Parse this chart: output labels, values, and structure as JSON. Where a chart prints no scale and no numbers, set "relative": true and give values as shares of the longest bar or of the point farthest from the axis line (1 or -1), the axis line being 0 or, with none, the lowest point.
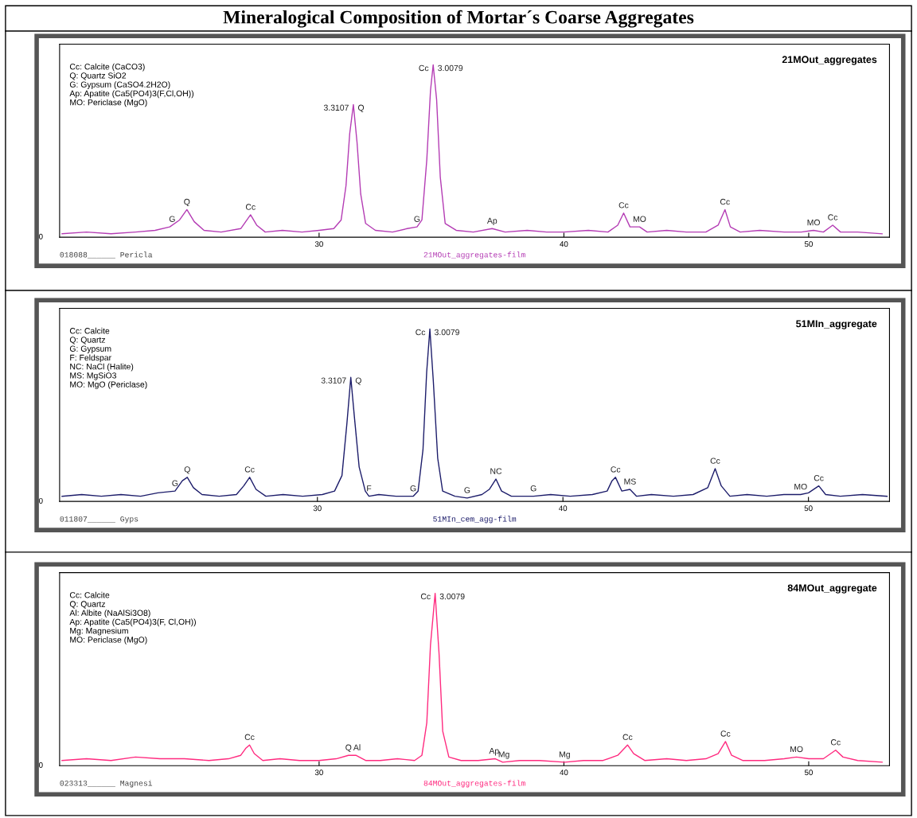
{
  "chart_data": [
    {
      "type": "line",
      "relative": true,
      "title": "Mineralogical Composition of Mortar´s Coarse Aggregates",
      "subtitle": "21MOut_aggregates",
      "xlim": [
        19.4,
        53.3
      ],
      "xticks": [
        30,
        40,
        50
      ],
      "grid": false,
      "legend": false,
      "series": [
        {
          "color": "#b43cb4",
          "x": [
            19.5,
            20.5,
            21.5,
            22.5,
            23.3,
            23.9,
            24.3,
            24.6,
            24.9,
            25.3,
            26.0,
            26.8,
            27.0,
            27.2,
            27.45,
            27.8,
            28.5,
            29.3,
            30.0,
            30.6,
            30.9,
            31.1,
            31.25,
            31.4,
            31.55,
            31.7,
            31.9,
            32.3,
            33.0,
            33.6,
            34.0,
            34.2,
            34.4,
            34.55,
            34.66,
            34.8,
            34.95,
            35.15,
            35.6,
            36.3,
            37.07,
            37.6,
            38.5,
            39.3,
            40.0,
            41.0,
            41.8,
            42.2,
            42.44,
            42.7,
            43.09,
            43.4,
            44.2,
            45.0,
            45.8,
            46.3,
            46.58,
            46.8,
            47.2,
            48.0,
            49.0,
            49.7,
            50.2,
            50.6,
            50.98,
            51.3,
            52.0,
            53.0
          ],
          "values": [
            0.02,
            0.03,
            0.02,
            0.03,
            0.04,
            0.06,
            0.1,
            0.16,
            0.09,
            0.04,
            0.03,
            0.05,
            0.09,
            0.13,
            0.07,
            0.03,
            0.04,
            0.03,
            0.04,
            0.05,
            0.1,
            0.3,
            0.6,
            0.77,
            0.55,
            0.25,
            0.08,
            0.04,
            0.03,
            0.05,
            0.06,
            0.1,
            0.45,
            0.85,
            1.0,
            0.8,
            0.35,
            0.08,
            0.04,
            0.03,
            0.05,
            0.03,
            0.04,
            0.03,
            0.03,
            0.04,
            0.03,
            0.07,
            0.14,
            0.06,
            0.06,
            0.03,
            0.04,
            0.03,
            0.03,
            0.07,
            0.16,
            0.06,
            0.03,
            0.04,
            0.03,
            0.03,
            0.04,
            0.03,
            0.07,
            0.03,
            0.03,
            0.02
          ]
        }
      ],
      "annotations": [
        "Cc: Calcite (CaCO3)\nQ: Quartz SiO2\nG: Gypsum (CaSO4.2H2O)\nAp: Apatite (Ca5(PO4)3(F,Cl,OH))\nMO: Periclase (MgO)",
        "018088______ Pericla",
        "21MOut_aggregates-film",
        "0",
        {
          "text": "G",
          "x": 24.0,
          "y": 0.06
        },
        {
          "text": "Q",
          "x": 24.6,
          "y": 0.16
        },
        {
          "text": "Cc",
          "x": 27.2,
          "y": 0.13
        },
        {
          "text": "3.3107",
          "x": 31.4,
          "y": 0.77
        },
        {
          "text": "Q",
          "x": 31.4,
          "y": 0.77
        },
        {
          "text": "G",
          "x": 34.0,
          "y": 0.06
        },
        {
          "text": "Cc",
          "x": 34.66,
          "y": 1.0
        },
        {
          "text": "3.0079",
          "x": 34.66,
          "y": 1.0
        },
        {
          "text": "Ap",
          "x": 37.07,
          "y": 0.05
        },
        {
          "text": "Cc",
          "x": 42.44,
          "y": 0.14
        },
        {
          "text": "MO",
          "x": 43.09,
          "y": 0.06
        },
        {
          "text": "Cc",
          "x": 46.58,
          "y": 0.16
        },
        {
          "text": "MO",
          "x": 50.2,
          "y": 0.04
        },
        {
          "text": "Cc",
          "x": 50.98,
          "y": 0.07
        }
      ]
    },
    {
      "type": "line",
      "relative": true,
      "subtitle": "51MIn_aggregate",
      "xlim": [
        19.5,
        53.3
      ],
      "xticks": [
        30,
        40,
        50
      ],
      "grid": false,
      "legend": false,
      "series": [
        {
          "color": "#1c1c6a",
          "x": [
            19.6,
            20.4,
            21.2,
            22.0,
            22.8,
            23.5,
            24.2,
            24.5,
            24.7,
            24.95,
            25.3,
            26.0,
            26.7,
            27.0,
            27.24,
            27.5,
            27.9,
            28.6,
            29.4,
            30.2,
            30.7,
            31.0,
            31.2,
            31.36,
            31.5,
            31.7,
            31.95,
            32.1,
            32.5,
            33.2,
            33.9,
            34.1,
            34.3,
            34.45,
            34.58,
            34.72,
            34.9,
            35.1,
            35.6,
            36.1,
            36.7,
            37.0,
            37.27,
            37.5,
            37.9,
            38.8,
            39.5,
            40.3,
            41.2,
            41.8,
            42.0,
            42.14,
            42.4,
            42.73,
            43.0,
            43.6,
            44.5,
            45.3,
            45.9,
            46.2,
            46.45,
            46.8,
            47.5,
            48.3,
            49.0,
            49.68,
            50.0,
            50.42,
            50.7,
            51.3,
            52.2,
            53.2
          ],
          "values": [
            0.03,
            0.04,
            0.03,
            0.04,
            0.03,
            0.05,
            0.06,
            0.12,
            0.14,
            0.08,
            0.04,
            0.03,
            0.04,
            0.09,
            0.14,
            0.07,
            0.03,
            0.04,
            0.03,
            0.04,
            0.06,
            0.15,
            0.45,
            0.72,
            0.5,
            0.2,
            0.06,
            0.03,
            0.04,
            0.03,
            0.03,
            0.06,
            0.3,
            0.75,
            1.0,
            0.7,
            0.25,
            0.06,
            0.03,
            0.02,
            0.04,
            0.07,
            0.13,
            0.06,
            0.03,
            0.03,
            0.04,
            0.03,
            0.04,
            0.06,
            0.12,
            0.14,
            0.06,
            0.07,
            0.03,
            0.04,
            0.03,
            0.04,
            0.08,
            0.19,
            0.09,
            0.03,
            0.04,
            0.03,
            0.04,
            0.04,
            0.05,
            0.09,
            0.04,
            0.03,
            0.04,
            0.03
          ]
        }
      ],
      "annotations": [
        "Cc: Calcite\nQ: Quartz\nG: Gypsum\nF: Feldspar\nNC: NaCl (Halite)\nMS: MgSiO3\nMO: MgO (Periclase)",
        "011807______ Gyps",
        "51MIn_cem_agg-film",
        "0",
        {
          "text": "G",
          "x": 24.2,
          "y": 0.06
        },
        {
          "text": "Q",
          "x": 24.7,
          "y": 0.14
        },
        {
          "text": "Cc",
          "x": 27.24,
          "y": 0.14
        },
        {
          "text": "3.3107",
          "x": 31.36,
          "y": 0.72
        },
        {
          "text": "Q",
          "x": 31.36,
          "y": 0.72
        },
        {
          "text": "F",
          "x": 32.1,
          "y": 0.03
        },
        {
          "text": "G",
          "x": 33.9,
          "y": 0.03
        },
        {
          "text": "Cc",
          "x": 34.58,
          "y": 1.0
        },
        {
          "text": "3.0079",
          "x": 34.58,
          "y": 1.0
        },
        {
          "text": "G",
          "x": 36.1,
          "y": 0.02
        },
        {
          "text": "NC",
          "x": 37.27,
          "y": 0.13
        },
        {
          "text": "G",
          "x": 38.8,
          "y": 0.03
        },
        {
          "text": "Cc",
          "x": 42.14,
          "y": 0.14
        },
        {
          "text": "MS",
          "x": 42.73,
          "y": 0.07
        },
        {
          "text": "Cc",
          "x": 46.2,
          "y": 0.19
        },
        {
          "text": "MO",
          "x": 49.68,
          "y": 0.04
        },
        {
          "text": "Cc",
          "x": 50.42,
          "y": 0.09
        }
      ]
    },
    {
      "type": "line",
      "relative": true,
      "subtitle": "84MOut_aggregate",
      "xlim": [
        19.4,
        53.3
      ],
      "xticks": [
        30,
        40,
        50
      ],
      "grid": false,
      "legend": false,
      "series": [
        {
          "color": "#ff2a7f",
          "x": [
            19.5,
            20.5,
            21.5,
            22.5,
            23.5,
            24.5,
            25.5,
            26.3,
            26.8,
            27.0,
            27.16,
            27.35,
            27.7,
            28.4,
            29.2,
            30.0,
            30.7,
            31.2,
            31.5,
            31.9,
            32.5,
            33.2,
            33.9,
            34.2,
            34.4,
            34.55,
            34.74,
            34.9,
            35.05,
            35.3,
            35.8,
            36.5,
            37.2,
            37.5,
            38.2,
            39.0,
            40.03,
            40.8,
            41.6,
            42.2,
            42.6,
            42.85,
            43.3,
            44.2,
            45.0,
            45.8,
            46.3,
            46.6,
            46.85,
            47.3,
            48.2,
            49.0,
            49.5,
            50.0,
            50.6,
            51.1,
            51.4,
            52.0,
            53.0
          ],
          "values": [
            0.03,
            0.04,
            0.03,
            0.05,
            0.04,
            0.04,
            0.03,
            0.04,
            0.06,
            0.1,
            0.12,
            0.07,
            0.03,
            0.04,
            0.03,
            0.03,
            0.04,
            0.06,
            0.06,
            0.03,
            0.03,
            0.04,
            0.03,
            0.06,
            0.25,
            0.7,
            1.0,
            0.65,
            0.2,
            0.05,
            0.03,
            0.03,
            0.04,
            0.02,
            0.03,
            0.03,
            0.02,
            0.03,
            0.03,
            0.06,
            0.12,
            0.07,
            0.03,
            0.04,
            0.03,
            0.04,
            0.07,
            0.14,
            0.06,
            0.03,
            0.03,
            0.04,
            0.05,
            0.04,
            0.04,
            0.09,
            0.05,
            0.03,
            0.02
          ]
        }
      ],
      "annotations": [
        "Cc: Calcite\nQ: Quartz\nAl: Albite (NaAlSi3O8)\nAp: Apatite (Ca5(PO4)3(F, Cl,OH))\nMg: Magnesium\nMO: Periclase (MgO)",
        "023313______ Magnesi",
        "84MOut_aggregates-film",
        "0",
        {
          "text": "Cc",
          "x": 27.16,
          "y": 0.12
        },
        {
          "text": "Q",
          "x": 31.2,
          "y": 0.06
        },
        {
          "text": "Al",
          "x": 31.55,
          "y": 0.06
        },
        {
          "text": "Cc",
          "x": 34.74,
          "y": 1.0
        },
        {
          "text": "3.0079",
          "x": 34.74,
          "y": 1.0
        },
        {
          "text": "Ap",
          "x": 37.15,
          "y": 0.04
        },
        {
          "text": "Mg",
          "x": 37.55,
          "y": 0.02
        },
        {
          "text": "Mg",
          "x": 40.03,
          "y": 0.02
        },
        {
          "text": "Cc",
          "x": 42.6,
          "y": 0.12
        },
        {
          "text": "Cc",
          "x": 46.6,
          "y": 0.14
        },
        {
          "text": "MO",
          "x": 49.5,
          "y": 0.05
        },
        {
          "text": "Cc",
          "x": 51.1,
          "y": 0.09
        }
      ]
    }
  ]
}
